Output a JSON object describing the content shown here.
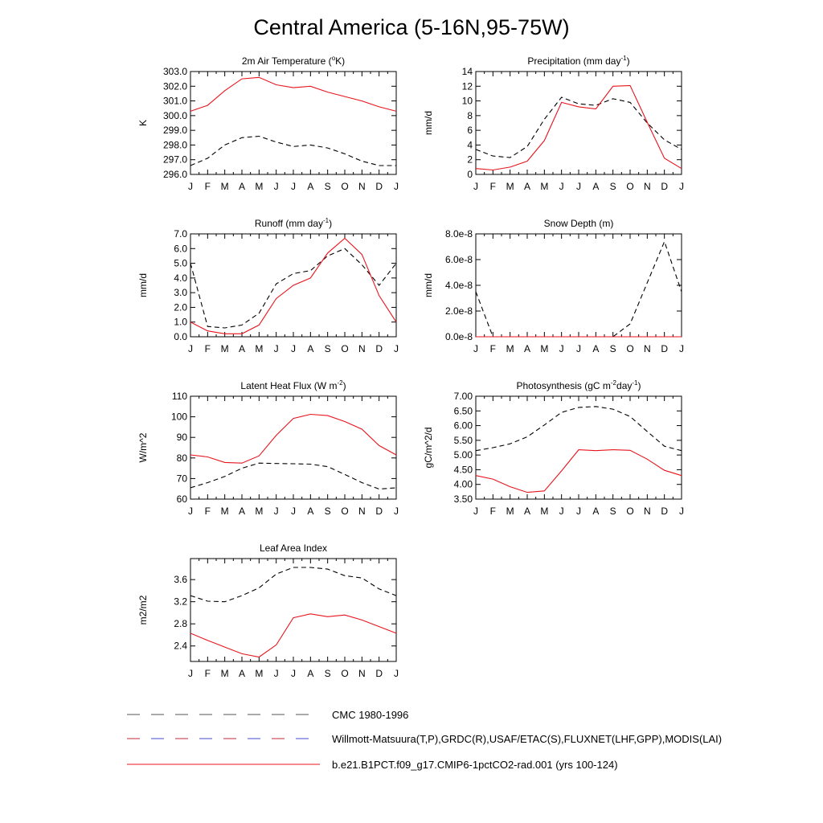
{
  "title": "Central America (5-16N,95-75W)",
  "legend": [
    {
      "label": "CMC 1980-1996",
      "style": "dashed-black"
    },
    {
      "label": "Willmott-Matsuura(T,P),GRDC(R),USAF/ETAC(S),FLUXNET(LHF,GPP),MODIS(LAI)",
      "style": "dashed-red-blue"
    },
    {
      "label": "b.e21.B1PCT.f09_g17.CMIP6-1pctCO2-rad.001 (yrs 100-124)",
      "style": "solid-red"
    }
  ],
  "colors": {
    "model": "#e8141c",
    "obs": "#000000",
    "cmc": "#000000"
  },
  "chart_data": [
    {
      "type": "line",
      "title": "2m Air Temperature (",
      "title_sup": "o",
      "title_after": "K)",
      "ylabel": "K",
      "categories": [
        "J",
        "F",
        "M",
        "A",
        "M",
        "J",
        "J",
        "A",
        "S",
        "O",
        "N",
        "D",
        "J"
      ],
      "ylim": [
        296.0,
        303.0
      ],
      "yticks": [
        296.0,
        297.0,
        298.0,
        299.0,
        300.0,
        301.0,
        302.0,
        303.0
      ],
      "ytick_labels": [
        "296.0",
        "297.0",
        "298.0",
        "299.0",
        "300.0",
        "301.0",
        "302.0",
        "303.0"
      ],
      "series": [
        {
          "style": "dashed",
          "values": [
            296.6,
            297.1,
            298.0,
            298.5,
            298.6,
            298.2,
            297.9,
            298.0,
            297.8,
            297.4,
            296.9,
            296.6,
            296.6
          ]
        },
        {
          "style": "solid",
          "values": [
            300.3,
            300.7,
            301.7,
            302.5,
            302.6,
            302.1,
            301.9,
            302.0,
            301.6,
            301.3,
            301.0,
            300.6,
            300.3
          ]
        }
      ]
    },
    {
      "type": "line",
      "title": "Precipitation (mm day",
      "title_sup": "-1",
      "title_after": ")",
      "ylabel": "mm/d",
      "categories": [
        "J",
        "F",
        "M",
        "A",
        "M",
        "J",
        "J",
        "A",
        "S",
        "O",
        "N",
        "D",
        "J"
      ],
      "ylim": [
        0,
        14
      ],
      "yticks": [
        0,
        2,
        4,
        6,
        8,
        10,
        12,
        14
      ],
      "ytick_labels": [
        "0",
        "2",
        "4",
        "6",
        "8",
        "10",
        "12",
        "14"
      ],
      "series": [
        {
          "style": "dashed",
          "values": [
            3.4,
            2.5,
            2.3,
            3.8,
            7.5,
            10.5,
            9.6,
            9.4,
            10.3,
            9.8,
            7.0,
            4.7,
            3.4
          ]
        },
        {
          "style": "solid",
          "values": [
            0.8,
            0.6,
            1.0,
            1.8,
            4.6,
            9.8,
            9.2,
            8.9,
            12.0,
            12.1,
            7.1,
            2.2,
            0.8
          ]
        }
      ]
    },
    {
      "type": "line",
      "title": "Runoff (mm day",
      "title_sup": "-1",
      "title_after": ")",
      "ylabel": "mm/d",
      "categories": [
        "J",
        "F",
        "M",
        "A",
        "M",
        "J",
        "J",
        "A",
        "S",
        "O",
        "N",
        "D",
        "J"
      ],
      "ylim": [
        0.0,
        7.0
      ],
      "yticks": [
        0.0,
        1.0,
        2.0,
        3.0,
        4.0,
        5.0,
        6.0,
        7.0
      ],
      "ytick_labels": [
        "0.0",
        "1.0",
        "2.0",
        "3.0",
        "4.0",
        "5.0",
        "6.0",
        "7.0"
      ],
      "series": [
        {
          "style": "dashed",
          "values": [
            5.0,
            0.7,
            0.6,
            0.8,
            1.6,
            3.6,
            4.3,
            4.5,
            5.5,
            6.0,
            4.9,
            3.5,
            5.0
          ]
        },
        {
          "style": "solid",
          "values": [
            1.0,
            0.4,
            0.2,
            0.2,
            0.8,
            2.6,
            3.5,
            4.0,
            5.7,
            6.7,
            5.6,
            2.8,
            1.0
          ]
        }
      ]
    },
    {
      "type": "line",
      "title": "Snow Depth (m)",
      "title_sup": "",
      "title_after": "",
      "ylabel": "mm/d",
      "categories": [
        "J",
        "F",
        "M",
        "A",
        "M",
        "J",
        "J",
        "A",
        "S",
        "O",
        "N",
        "D",
        "J"
      ],
      "ylim": [
        0,
        8e-08
      ],
      "yticks": [
        0,
        2e-08,
        4e-08,
        6e-08,
        8e-08
      ],
      "ytick_labels": [
        "0.0e-8",
        "2.0e-8",
        "4.0e-8",
        "6.0e-8",
        "8.0e-8"
      ],
      "series": [
        {
          "style": "dashed",
          "values": [
            3.5e-08,
            0,
            0,
            0,
            0,
            0,
            0,
            0,
            0,
            1e-08,
            4.2e-08,
            7.4e-08,
            3.5e-08
          ]
        },
        {
          "style": "solid",
          "values": [
            0,
            0,
            0,
            0,
            0,
            0,
            0,
            0,
            0,
            0,
            0,
            0,
            0
          ]
        }
      ]
    },
    {
      "type": "line",
      "title": "Latent Heat Flux (W m",
      "title_sup": "-2",
      "title_after": ")",
      "ylabel": "W/m^2",
      "categories": [
        "J",
        "F",
        "M",
        "A",
        "M",
        "J",
        "J",
        "A",
        "S",
        "O",
        "N",
        "D",
        "J"
      ],
      "ylim": [
        60,
        110
      ],
      "yticks": [
        60,
        70,
        80,
        90,
        100,
        110
      ],
      "ytick_labels": [
        "60",
        "70",
        "80",
        "90",
        "100",
        "110"
      ],
      "series": [
        {
          "style": "dashed",
          "values": [
            65.5,
            68.0,
            71.0,
            75.0,
            77.5,
            77.3,
            77.2,
            77.0,
            75.8,
            72.0,
            68.0,
            64.9,
            65.5
          ]
        },
        {
          "style": "solid",
          "values": [
            81.5,
            80.5,
            77.8,
            77.5,
            81.0,
            91.0,
            99.2,
            101.2,
            100.6,
            97.7,
            94.0,
            86.0,
            81.5
          ]
        }
      ]
    },
    {
      "type": "line",
      "title": "Photosynthesis (gC m",
      "title_sup": "-2",
      "title_after": "day",
      "title_sup2": "-1",
      "title_end": ")",
      "ylabel": "gC/m^2/d",
      "categories": [
        "J",
        "F",
        "M",
        "A",
        "M",
        "J",
        "J",
        "A",
        "S",
        "O",
        "N",
        "D",
        "J"
      ],
      "ylim": [
        3.5,
        7.0
      ],
      "yticks": [
        3.5,
        4.0,
        4.5,
        5.0,
        5.5,
        6.0,
        6.5,
        7.0
      ],
      "ytick_labels": [
        "3.50",
        "4.00",
        "4.50",
        "5.00",
        "5.50",
        "6.00",
        "6.50",
        "7.00"
      ],
      "series": [
        {
          "style": "dashed",
          "values": [
            5.15,
            5.25,
            5.38,
            5.62,
            6.02,
            6.45,
            6.62,
            6.65,
            6.56,
            6.31,
            5.8,
            5.3,
            5.15
          ]
        },
        {
          "style": "solid",
          "values": [
            4.3,
            4.18,
            3.92,
            3.73,
            3.78,
            4.46,
            5.18,
            5.15,
            5.18,
            5.16,
            4.86,
            4.48,
            4.3
          ]
        }
      ]
    },
    {
      "type": "line",
      "title": "Leaf Area Index",
      "title_sup": "",
      "title_after": "",
      "ylabel": "m2/m2",
      "categories": [
        "J",
        "F",
        "M",
        "A",
        "M",
        "J",
        "J",
        "A",
        "S",
        "O",
        "N",
        "D",
        "J"
      ],
      "ylim": [
        2.12,
        3.98
      ],
      "yticks": [
        2.4,
        2.8,
        3.2,
        3.6
      ],
      "ytick_labels": [
        "2.4",
        "2.8",
        "3.2",
        "3.6"
      ],
      "series": [
        {
          "style": "dashed",
          "values": [
            3.31,
            3.21,
            3.2,
            3.31,
            3.45,
            3.7,
            3.82,
            3.82,
            3.79,
            3.67,
            3.63,
            3.43,
            3.31
          ]
        },
        {
          "style": "solid",
          "values": [
            2.63,
            2.5,
            2.38,
            2.26,
            2.2,
            2.42,
            2.91,
            2.98,
            2.93,
            2.96,
            2.87,
            2.75,
            2.63
          ]
        }
      ]
    }
  ]
}
